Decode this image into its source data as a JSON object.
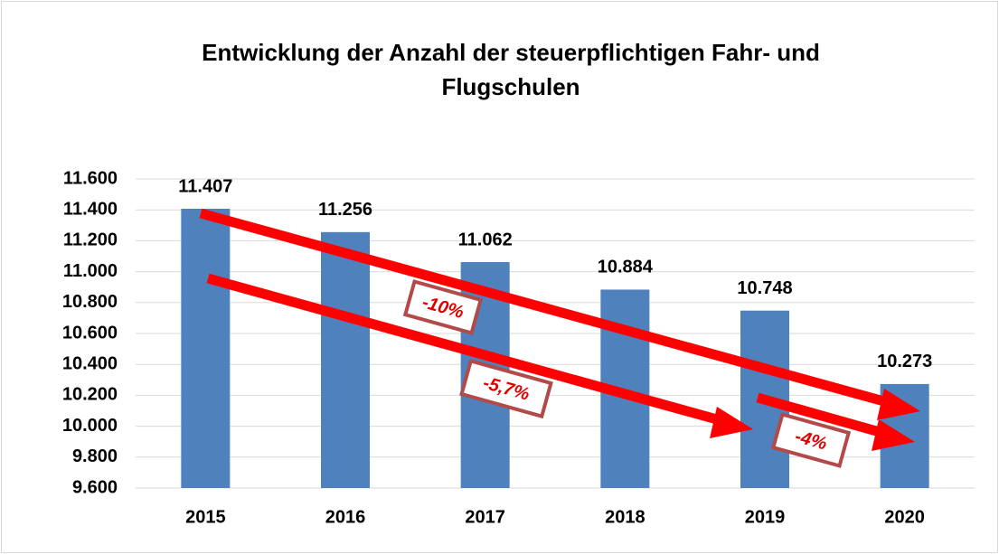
{
  "chart_data": {
    "type": "bar",
    "title": "Entwicklung der Anzahl der steuerpflichtigen Fahr- und Flugschulen",
    "categories": [
      "2015",
      "2016",
      "2017",
      "2018",
      "2019",
      "2020"
    ],
    "values": [
      11407,
      11256,
      11062,
      10884,
      10748,
      10273
    ],
    "value_labels": [
      "11.407",
      "11.256",
      "11.062",
      "10.884",
      "10.748",
      "10.273"
    ],
    "color": "#4f81bd",
    "ylim": [
      9600,
      11600
    ],
    "yticks": [
      {
        "value": 9600,
        "label": "9.600"
      },
      {
        "value": 9800,
        "label": "9.800"
      },
      {
        "value": 10000,
        "label": "10.000"
      },
      {
        "value": 10200,
        "label": "10.200"
      },
      {
        "value": 10400,
        "label": "10.400"
      },
      {
        "value": 10600,
        "label": "10.600"
      },
      {
        "value": 10800,
        "label": "10.800"
      },
      {
        "value": 11000,
        "label": "11.000"
      },
      {
        "value": 11200,
        "label": "11.200"
      },
      {
        "value": 11400,
        "label": "11.400"
      },
      {
        "value": 11600,
        "label": "11.600"
      }
    ],
    "grid": true,
    "annotations": [
      "-10%",
      "-5,7%",
      "-4%"
    ]
  }
}
